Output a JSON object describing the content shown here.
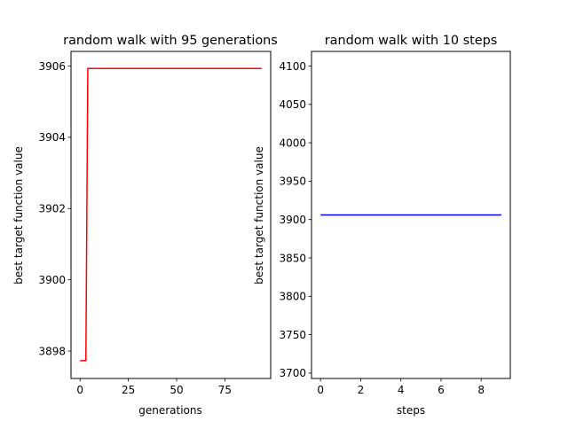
{
  "chart_data": [
    {
      "type": "line",
      "title": "random walk with 95 generations",
      "xlabel": "generations",
      "ylabel": "best target function value",
      "xlim": [
        -4.7,
        98.7
      ],
      "ylim": [
        3897.23,
        3906.41
      ],
      "xticks": [
        0,
        25,
        50,
        75
      ],
      "yticks": [
        3898,
        3900,
        3902,
        3904,
        3906
      ],
      "grid": false,
      "series": [
        {
          "color": "#ff0000",
          "x": [
            0,
            3,
            4,
            94
          ],
          "y": [
            3897.73,
            3897.73,
            3905.93,
            3905.93
          ]
        }
      ]
    },
    {
      "type": "line",
      "title": "random walk with 10 steps",
      "xlabel": "steps",
      "ylabel": "best target function value",
      "xlim": [
        -0.45,
        9.45
      ],
      "ylim": [
        3693,
        4119
      ],
      "xticks": [
        0,
        2,
        4,
        6,
        8
      ],
      "yticks": [
        3700,
        3750,
        3800,
        3850,
        3900,
        3950,
        4000,
        4050,
        4100
      ],
      "grid": false,
      "series": [
        {
          "color": "#0000ff",
          "x": [
            0,
            1,
            2,
            3,
            4,
            5,
            6,
            7,
            8,
            9
          ],
          "y": [
            3905.93,
            3905.93,
            3905.93,
            3905.93,
            3905.93,
            3905.93,
            3905.93,
            3905.93,
            3905.93,
            3905.93
          ]
        }
      ]
    }
  ]
}
